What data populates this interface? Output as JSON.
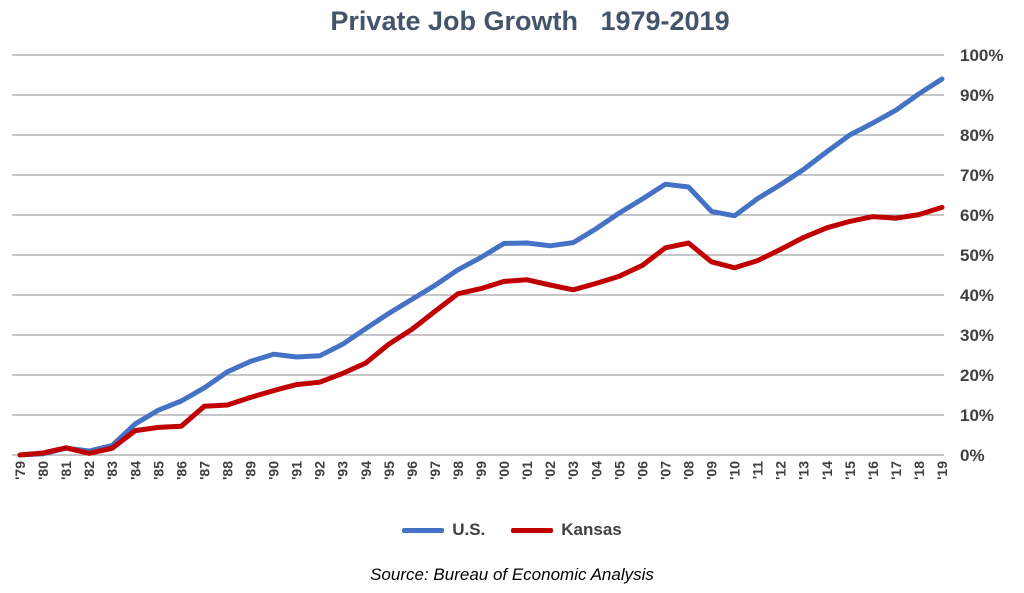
{
  "chart_data": {
    "type": "line",
    "title": "Private Job Growth   1979-2019",
    "source": "Source: Bureau of Economic Analysis",
    "categories": [
      "'79",
      "'80",
      "'81",
      "'82",
      "'83",
      "'84",
      "'85",
      "'86",
      "'87",
      "'88",
      "'89",
      "'90",
      "'91",
      "'92",
      "'93",
      "'94",
      "'95",
      "'96",
      "'97",
      "'98",
      "'99",
      "'00",
      "'01",
      "'02",
      "'03",
      "'04",
      "'05",
      "'06",
      "'07",
      "'08",
      "'09",
      "'10",
      "'11",
      "'12",
      "'13",
      "'14",
      "'15",
      "'16",
      "'17",
      "'18",
      "'19"
    ],
    "y_ticks": [
      "0%",
      "10%",
      "20%",
      "30%",
      "40%",
      "50%",
      "60%",
      "70%",
      "80%",
      "90%",
      "100%"
    ],
    "ylim": [
      0,
      100
    ],
    "grid": true,
    "legend_position": "bottom",
    "series": [
      {
        "name": "U.S.",
        "color": "#4472c4",
        "values": [
          0,
          0.3,
          1.7,
          1.0,
          2.4,
          7.8,
          11.2,
          13.5,
          16.8,
          20.8,
          23.4,
          25.2,
          24.5,
          24.8,
          27.7,
          31.6,
          35.4,
          38.9,
          42.4,
          46.3,
          49.4,
          52.9,
          53.0,
          52.3,
          53.1,
          56.6,
          60.5,
          64.0,
          67.7,
          67.0,
          60.9,
          59.8,
          64.1,
          67.6,
          71.4,
          75.8,
          80.0,
          83.0,
          86.2,
          90.3,
          94.0
        ]
      },
      {
        "name": "Kansas",
        "color": "#c00000",
        "values": [
          0,
          0.5,
          1.8,
          0.4,
          1.7,
          6.1,
          6.9,
          7.2,
          12.2,
          12.5,
          14.4,
          16.1,
          17.6,
          18.2,
          20.4,
          23.0,
          27.7,
          31.4,
          35.9,
          40.3,
          41.6,
          43.4,
          43.8,
          42.5,
          41.3,
          42.9,
          44.7,
          47.4,
          51.8,
          53.0,
          48.3,
          46.8,
          48.6,
          51.4,
          54.4,
          56.8,
          58.4,
          59.6,
          59.2,
          60.1,
          61.9
        ]
      }
    ]
  }
}
